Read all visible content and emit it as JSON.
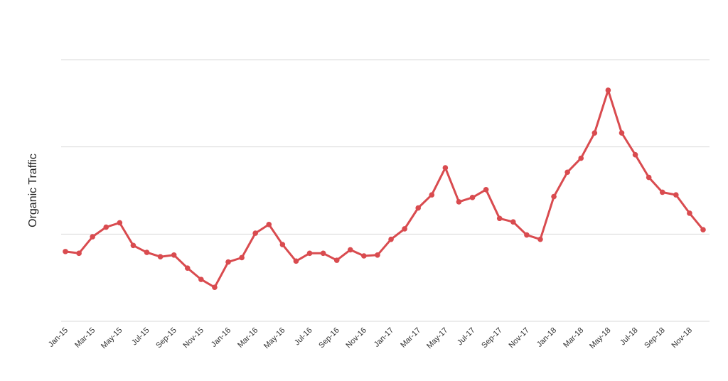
{
  "chart_data": {
    "type": "line",
    "title": "",
    "xlabel": "",
    "ylabel": "Organic Traffic",
    "ylim": [
      0,
      3
    ],
    "grid": true,
    "legend": "none",
    "y_tick_labels_shown": false,
    "line_color": "#d94b4f",
    "x": [
      "Jan-15",
      "Feb-15",
      "Mar-15",
      "Apr-15",
      "May-15",
      "Jun-15",
      "Jul-15",
      "Aug-15",
      "Sep-15",
      "Oct-15",
      "Nov-15",
      "Dec-15",
      "Jan-16",
      "Feb-16",
      "Mar-16",
      "Apr-16",
      "May-16",
      "Jun-16",
      "Jul-16",
      "Aug-16",
      "Sep-16",
      "Oct-16",
      "Nov-16",
      "Dec-16",
      "Jan-17",
      "Feb-17",
      "Mar-17",
      "Apr-17",
      "May-17",
      "Jun-17",
      "Jul-17",
      "Aug-17",
      "Sep-17",
      "Oct-17",
      "Nov-17",
      "Dec-17",
      "Jan-18",
      "Feb-18",
      "Mar-18",
      "Apr-18",
      "May-18",
      "Jun-18",
      "Jul-18",
      "Aug-18",
      "Sep-18",
      "Oct-18",
      "Nov-18",
      "Dec-18"
    ],
    "x_tick_labels": [
      "Jan-15",
      "Mar-15",
      "May-15",
      "Jul-15",
      "Sep-15",
      "Nov-15",
      "Jan-16",
      "Mar-16",
      "May-16",
      "Jul-16",
      "Sep-16",
      "Nov-16",
      "Jan-17",
      "Mar-17",
      "May-17",
      "Jul-17",
      "Sep-17",
      "Nov-17",
      "Jan-18",
      "Mar-18",
      "May-18",
      "Jul-18",
      "Sep-18",
      "Nov-18"
    ],
    "series": [
      {
        "values": [
          0.8,
          0.78,
          0.97,
          1.08,
          1.13,
          0.87,
          0.79,
          0.74,
          0.76,
          0.61,
          0.48,
          0.39,
          0.68,
          0.73,
          1.01,
          1.11,
          0.88,
          0.69,
          0.78,
          0.78,
          0.7,
          0.82,
          0.75,
          0.76,
          0.94,
          1.06,
          1.3,
          1.45,
          1.76,
          1.37,
          1.42,
          1.51,
          1.18,
          1.14,
          0.99,
          0.94,
          1.43,
          1.71,
          1.87,
          2.16,
          2.65,
          2.16,
          1.91,
          1.65,
          1.48,
          1.45,
          1.24,
          1.05
        ]
      }
    ]
  }
}
